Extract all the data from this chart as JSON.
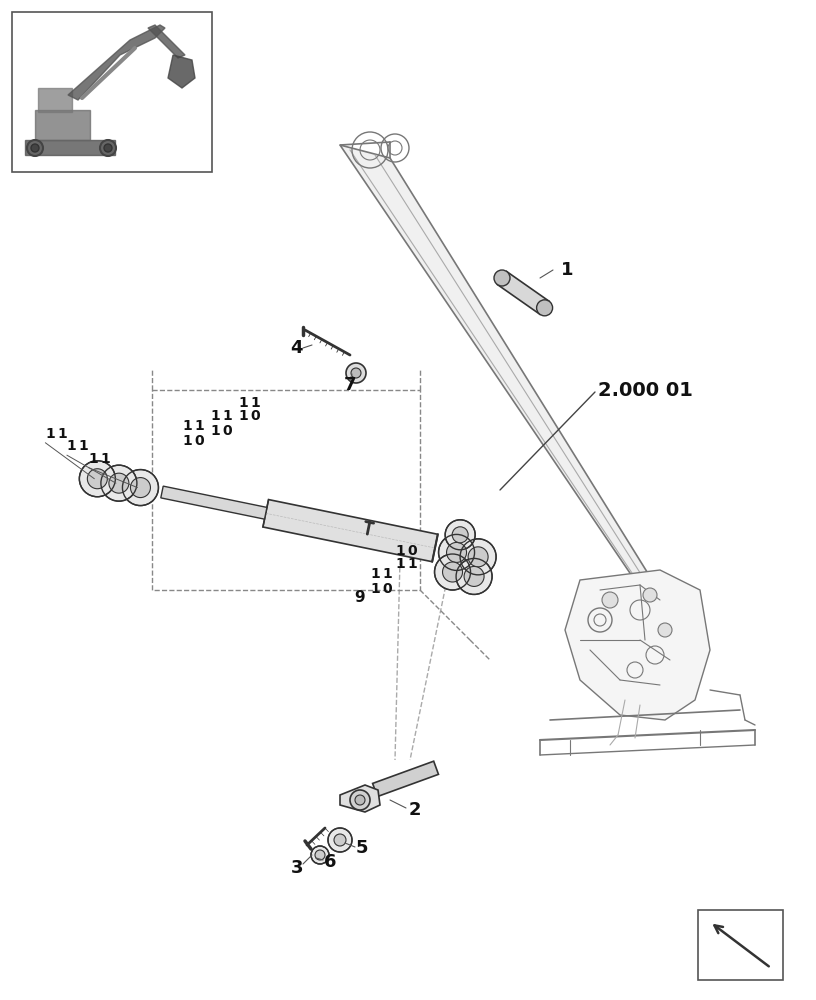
{
  "bg_color": "#ffffff",
  "lc": "#777777",
  "dc": "#333333",
  "lc2": "#aaaaaa",
  "fig_width": 8.16,
  "fig_height": 10.0,
  "dpi": 100
}
